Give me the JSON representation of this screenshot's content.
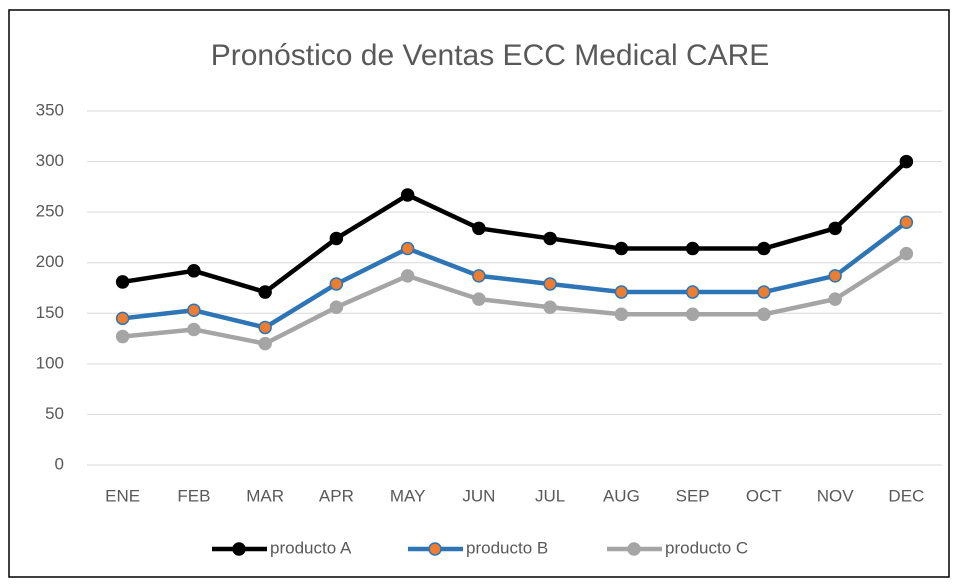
{
  "chart_data": {
    "type": "line",
    "title": "Pronóstico de Ventas ECC Medical CARE",
    "categories": [
      "ENE",
      "FEB",
      "MAR",
      "APR",
      "MAY",
      "JUN",
      "JUL",
      "AUG",
      "SEP",
      "OCT",
      "NOV",
      "DEC"
    ],
    "series": [
      {
        "name": "producto A",
        "color": "#000000",
        "marker_color": "#000000",
        "values": [
          181,
          192,
          171,
          224,
          267,
          234,
          224,
          214,
          214,
          214,
          234,
          300
        ]
      },
      {
        "name": "producto B",
        "color": "#2e75b6",
        "marker_color": "#ed7d31",
        "values": [
          145,
          153,
          136,
          179,
          214,
          187,
          179,
          171,
          171,
          171,
          187,
          240
        ]
      },
      {
        "name": "producto C",
        "color": "#a5a5a5",
        "marker_color": "#a5a5a5",
        "values": [
          127,
          134,
          120,
          156,
          187,
          164,
          156,
          149,
          149,
          149,
          164,
          209
        ]
      }
    ],
    "ylim": [
      0,
      350
    ],
    "yticks": [
      0,
      50,
      100,
      150,
      200,
      250,
      300,
      350
    ],
    "grid": true,
    "legend": "bottom"
  }
}
